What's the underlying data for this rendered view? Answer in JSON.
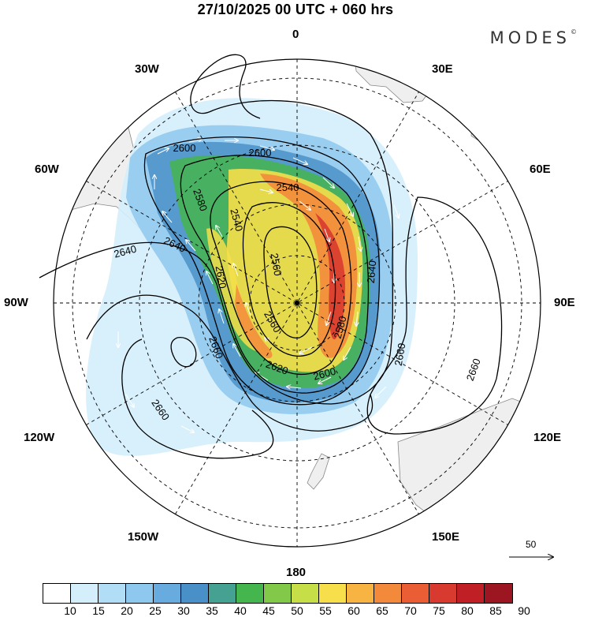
{
  "title": "27/10/2025  00 UTC  + 060 hrs",
  "brand": "MODES",
  "brand_mark": "©",
  "meridian_labels": {
    "m0": "0",
    "m30e": "30E",
    "m60e": "60E",
    "m90e": "90E",
    "m120e": "120E",
    "m150e": "150E",
    "m180": "180",
    "m150w": "150W",
    "m120w": "120W",
    "m90w": "90W",
    "m60w": "60W",
    "m30w": "30W"
  },
  "vector_scale": {
    "label": "50"
  },
  "contour_labels": [
    "2600",
    "2600",
    "2540",
    "2580",
    "2540",
    "2640",
    "2640",
    "2620",
    "2560",
    "2560",
    "2580",
    "2620",
    "2600",
    "2640",
    "2660",
    "2660",
    "2660",
    "2660"
  ],
  "colorbar": {
    "ticks": [
      "10",
      "15",
      "20",
      "25",
      "30",
      "35",
      "40",
      "45",
      "50",
      "55",
      "60",
      "65",
      "70",
      "75",
      "80",
      "85",
      "90"
    ],
    "colors": [
      "#ffffff",
      "#d4eefc",
      "#b2ddf6",
      "#8ec8ef",
      "#68acdf",
      "#4a90c8",
      "#45a192",
      "#45b54e",
      "#82c94a",
      "#c6df48",
      "#f6df4a",
      "#f7b443",
      "#f38a3b",
      "#ea5d35",
      "#d93a2f",
      "#c01f26",
      "#9b1620"
    ]
  },
  "chart_data": {
    "type": "polar_map",
    "projection": "south polar stereographic",
    "title": "27/10/2025  00 UTC  + 060 hrs",
    "variable_contours": "geopotential height (contours, interval 20)",
    "variable_shaded": "wind speed (shaded, 10-90)",
    "contour_levels": [
      2540,
      2560,
      2580,
      2600,
      2620,
      2640,
      2660
    ],
    "shading_levels": [
      10,
      15,
      20,
      25,
      30,
      35,
      40,
      45,
      50,
      55,
      60,
      65,
      70,
      75,
      80,
      85,
      90
    ],
    "jet_max_speed": 75,
    "vector_reference": 50
  }
}
